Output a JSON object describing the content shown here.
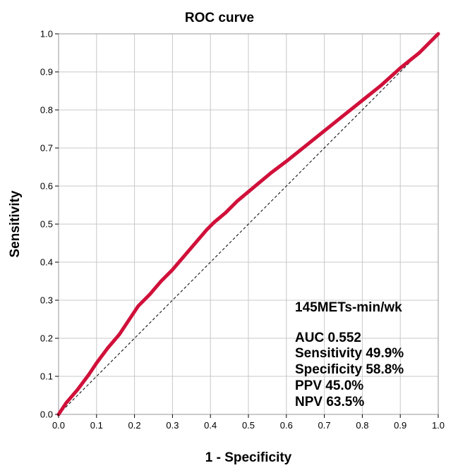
{
  "chart_data": {
    "type": "line",
    "title": "ROC curve",
    "xlabel": "1 - Specificity",
    "ylabel": "Sensitivity",
    "xlim": [
      0.0,
      1.0
    ],
    "ylim": [
      0.0,
      1.0
    ],
    "grid": true,
    "x_ticks": [
      "0.0",
      "0.1",
      "0.2",
      "0.3",
      "0.4",
      "0.5",
      "0.6",
      "0.7",
      "0.8",
      "0.9",
      "1.0"
    ],
    "y_ticks": [
      "0.0",
      "0.1",
      "0.2",
      "0.3",
      "0.4",
      "0.5",
      "0.6",
      "0.7",
      "0.8",
      "0.9",
      "1.0"
    ],
    "series": [
      {
        "name": "ROC",
        "color": "#d0103a",
        "x": [
          0.0,
          0.02,
          0.05,
          0.08,
          0.1,
          0.13,
          0.16,
          0.19,
          0.21,
          0.24,
          0.27,
          0.3,
          0.33,
          0.36,
          0.39,
          0.41,
          0.44,
          0.47,
          0.5,
          0.53,
          0.56,
          0.6,
          0.65,
          0.7,
          0.75,
          0.8,
          0.85,
          0.9,
          0.95,
          1.0
        ],
        "y": [
          0.0,
          0.03,
          0.065,
          0.105,
          0.135,
          0.175,
          0.21,
          0.255,
          0.285,
          0.315,
          0.35,
          0.38,
          0.415,
          0.45,
          0.485,
          0.505,
          0.53,
          0.56,
          0.585,
          0.61,
          0.635,
          0.665,
          0.705,
          0.745,
          0.785,
          0.825,
          0.865,
          0.91,
          0.95,
          1.0
        ]
      },
      {
        "name": "Reference line",
        "color": "#000000",
        "x": [
          0.0,
          1.0
        ],
        "y": [
          0.0,
          1.0
        ]
      }
    ],
    "annotations": {
      "threshold": "145METs-min/wk",
      "lines": [
        "AUC 0.552",
        "Sensitivity 49.9%",
        "Specificity 58.8%",
        "PPV 45.0%",
        "NPV 63.5%"
      ]
    }
  }
}
